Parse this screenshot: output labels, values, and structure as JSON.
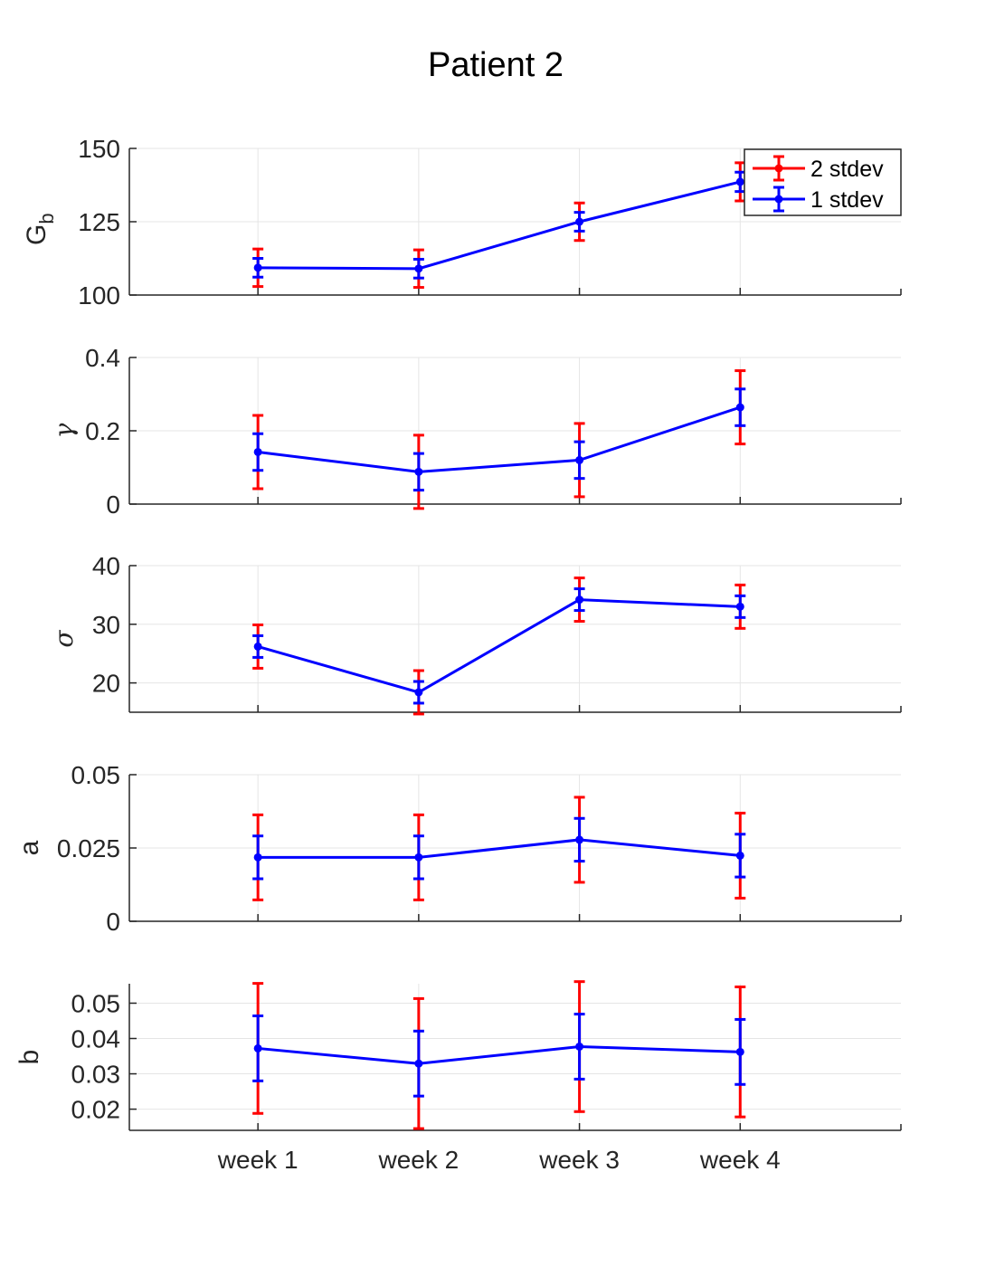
{
  "figure": {
    "title": "Patient 2"
  },
  "legend": {
    "placement": "top-right",
    "entries": [
      {
        "label": "2 stdev",
        "color": "#ff0000"
      },
      {
        "label": "1 stdev",
        "color": "#0000ff"
      }
    ]
  },
  "colors": {
    "two_stdev": "#ff0000",
    "one_stdev": "#0000ff",
    "grid": "#e5e5e5",
    "axis": "#262626"
  },
  "chart_data": [
    {
      "type": "line",
      "ylabel": "G",
      "ylabel_sub": "b",
      "ylabel_style": "roman-subscript",
      "x_range": [
        0.2,
        5
      ],
      "ylim": [
        100,
        150
      ],
      "yticks": [
        100,
        125,
        150
      ],
      "ytick_labels": [
        "100",
        "125",
        "150"
      ],
      "grid": true,
      "categories": [
        "week 1",
        "week 2",
        "week 3",
        "week 4"
      ],
      "values": [
        109.3,
        109.0,
        125.0,
        138.6
      ],
      "err_2stdev": [
        6.4,
        6.4,
        6.4,
        6.5
      ],
      "err_1stdev": [
        3.2,
        3.2,
        3.2,
        3.3
      ]
    },
    {
      "type": "line",
      "ylabel": "γ",
      "ylabel_style": "greek",
      "x_range": [
        0.2,
        5
      ],
      "ylim": [
        0,
        0.4
      ],
      "yticks": [
        0,
        0.2,
        0.4
      ],
      "ytick_labels": [
        "0",
        "0.2",
        "0.4"
      ],
      "grid": true,
      "categories": [
        "week 1",
        "week 2",
        "week 3",
        "week 4"
      ],
      "values": [
        0.142,
        0.088,
        0.12,
        0.264
      ],
      "err_2stdev": [
        0.1,
        0.1,
        0.1,
        0.1
      ],
      "err_1stdev": [
        0.05,
        0.05,
        0.05,
        0.05
      ]
    },
    {
      "type": "line",
      "ylabel": "σ",
      "ylabel_style": "greek",
      "x_range": [
        0.2,
        5
      ],
      "ylim": [
        15,
        40
      ],
      "yticks": [
        20,
        30,
        40
      ],
      "ytick_labels": [
        "20",
        "30",
        "40"
      ],
      "grid": true,
      "categories": [
        "week 1",
        "week 2",
        "week 3",
        "week 4"
      ],
      "values": [
        26.2,
        18.4,
        34.2,
        33.0
      ],
      "err_2stdev": [
        3.7,
        3.7,
        3.7,
        3.7
      ],
      "err_1stdev": [
        1.85,
        1.85,
        1.85,
        1.85
      ]
    },
    {
      "type": "line",
      "ylabel": "a",
      "ylabel_style": "roman",
      "x_range": [
        0.2,
        5
      ],
      "ylim": [
        0,
        0.05
      ],
      "yticks": [
        0,
        0.025,
        0.05
      ],
      "ytick_labels": [
        "0",
        "0.025",
        "0.05"
      ],
      "grid": true,
      "categories": [
        "week 1",
        "week 2",
        "week 3",
        "week 4"
      ],
      "values": [
        0.0218,
        0.0218,
        0.0278,
        0.0224
      ],
      "err_2stdev": [
        0.0145,
        0.0145,
        0.0145,
        0.0145
      ],
      "err_1stdev": [
        0.0073,
        0.0073,
        0.0073,
        0.0073
      ]
    },
    {
      "type": "line",
      "ylabel": "b",
      "ylabel_style": "roman",
      "x_range": [
        0.2,
        5
      ],
      "ylim": [
        0.014,
        0.0555
      ],
      "yticks": [
        0.02,
        0.03,
        0.04,
        0.05
      ],
      "ytick_labels": [
        "0.02",
        "0.03",
        "0.04",
        "0.05"
      ],
      "grid": true,
      "categories": [
        "week 1",
        "week 2",
        "week 3",
        "week 4"
      ],
      "values": [
        0.0372,
        0.0329,
        0.0377,
        0.0362
      ],
      "err_2stdev": [
        0.0184,
        0.0184,
        0.0184,
        0.0184
      ],
      "err_1stdev": [
        0.0092,
        0.0092,
        0.0092,
        0.0092
      ],
      "xlabel_ticks": [
        "week 1",
        "week 2",
        "week 3",
        "week 4"
      ]
    }
  ]
}
